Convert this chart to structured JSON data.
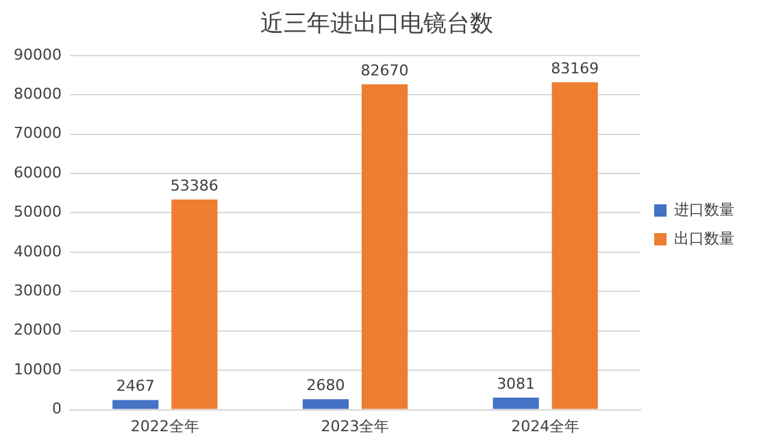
{
  "chart_data": {
    "type": "bar",
    "title": "近三年进出口电镜台数",
    "categories": [
      "2022全年",
      "2023全年",
      "2024全年"
    ],
    "series": [
      {
        "name": "进口数量",
        "color": "#4472c4",
        "values": [
          2467,
          2680,
          3081
        ]
      },
      {
        "name": "出口数量",
        "color": "#ed7d31",
        "values": [
          53386,
          82670,
          83169
        ]
      }
    ],
    "ylim": [
      0,
      90000
    ],
    "yticks": [
      0,
      10000,
      20000,
      30000,
      40000,
      50000,
      60000,
      70000,
      80000,
      90000
    ],
    "grid": "y",
    "legend": "right",
    "data_labels": true
  }
}
